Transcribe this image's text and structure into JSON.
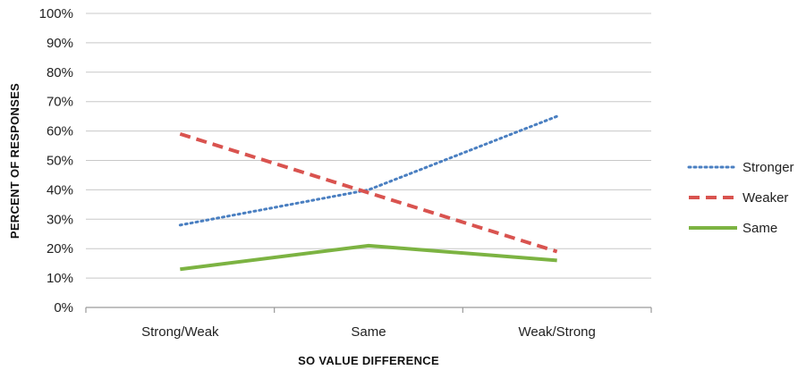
{
  "chart_data": {
    "type": "line",
    "categories": [
      "Strong/Weak",
      "Same",
      "Weak/Strong"
    ],
    "series": [
      {
        "name": "Stronger",
        "values": [
          28,
          40,
          65
        ],
        "color": "#4a7fc1",
        "style": "dotted"
      },
      {
        "name": "Weaker",
        "values": [
          59,
          39,
          19
        ],
        "color": "#d9534f",
        "style": "dashed"
      },
      {
        "name": "Same",
        "values": [
          13,
          21,
          16
        ],
        "color": "#7cb342",
        "style": "solid"
      }
    ],
    "xlabel": "SO VALUE DIFFERENCE",
    "ylabel": "PERCENT OF RESPONSES",
    "ylim": [
      0,
      100
    ],
    "yticks": [
      "0%",
      "10%",
      "20%",
      "30%",
      "40%",
      "50%",
      "60%",
      "70%",
      "80%",
      "90%",
      "100%"
    ],
    "grid": true,
    "legend_position": "right"
  }
}
